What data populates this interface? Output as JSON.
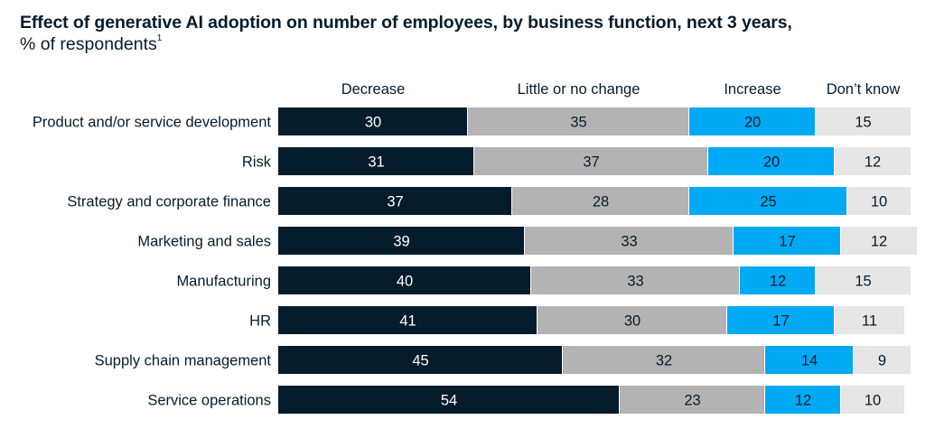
{
  "title": "Effect of generative AI adoption on number of employees, by business function, next 3 years,",
  "subtitle": "% of respondents",
  "footnote_marker": "1",
  "chart_data": {
    "type": "bar",
    "orientation": "horizontal",
    "stacked": true,
    "xlim": [
      0,
      100
    ],
    "legend_position": "top",
    "categories": [
      "Product and/or service development",
      "Risk",
      "Strategy and corporate finance",
      "Marketing and sales",
      "Manufacturing",
      "HR",
      "Supply chain management",
      "Service operations"
    ],
    "series": [
      {
        "name": "Decrease",
        "color": "#051c2c",
        "text_color": "#ffffff",
        "values": [
          30,
          31,
          37,
          39,
          40,
          41,
          45,
          54
        ]
      },
      {
        "name": "Little or no change",
        "color": "#b3b3b3",
        "text_color": "#051c2c",
        "values": [
          35,
          37,
          28,
          33,
          33,
          30,
          32,
          23
        ]
      },
      {
        "name": "Increase",
        "color": "#00a9f4",
        "text_color": "#051c2c",
        "values": [
          20,
          20,
          25,
          17,
          12,
          17,
          14,
          12
        ]
      },
      {
        "name": "Don’t know",
        "color": "#e6e6e6",
        "text_color": "#051c2c",
        "values": [
          15,
          12,
          10,
          12,
          15,
          11,
          9,
          10
        ]
      }
    ]
  }
}
